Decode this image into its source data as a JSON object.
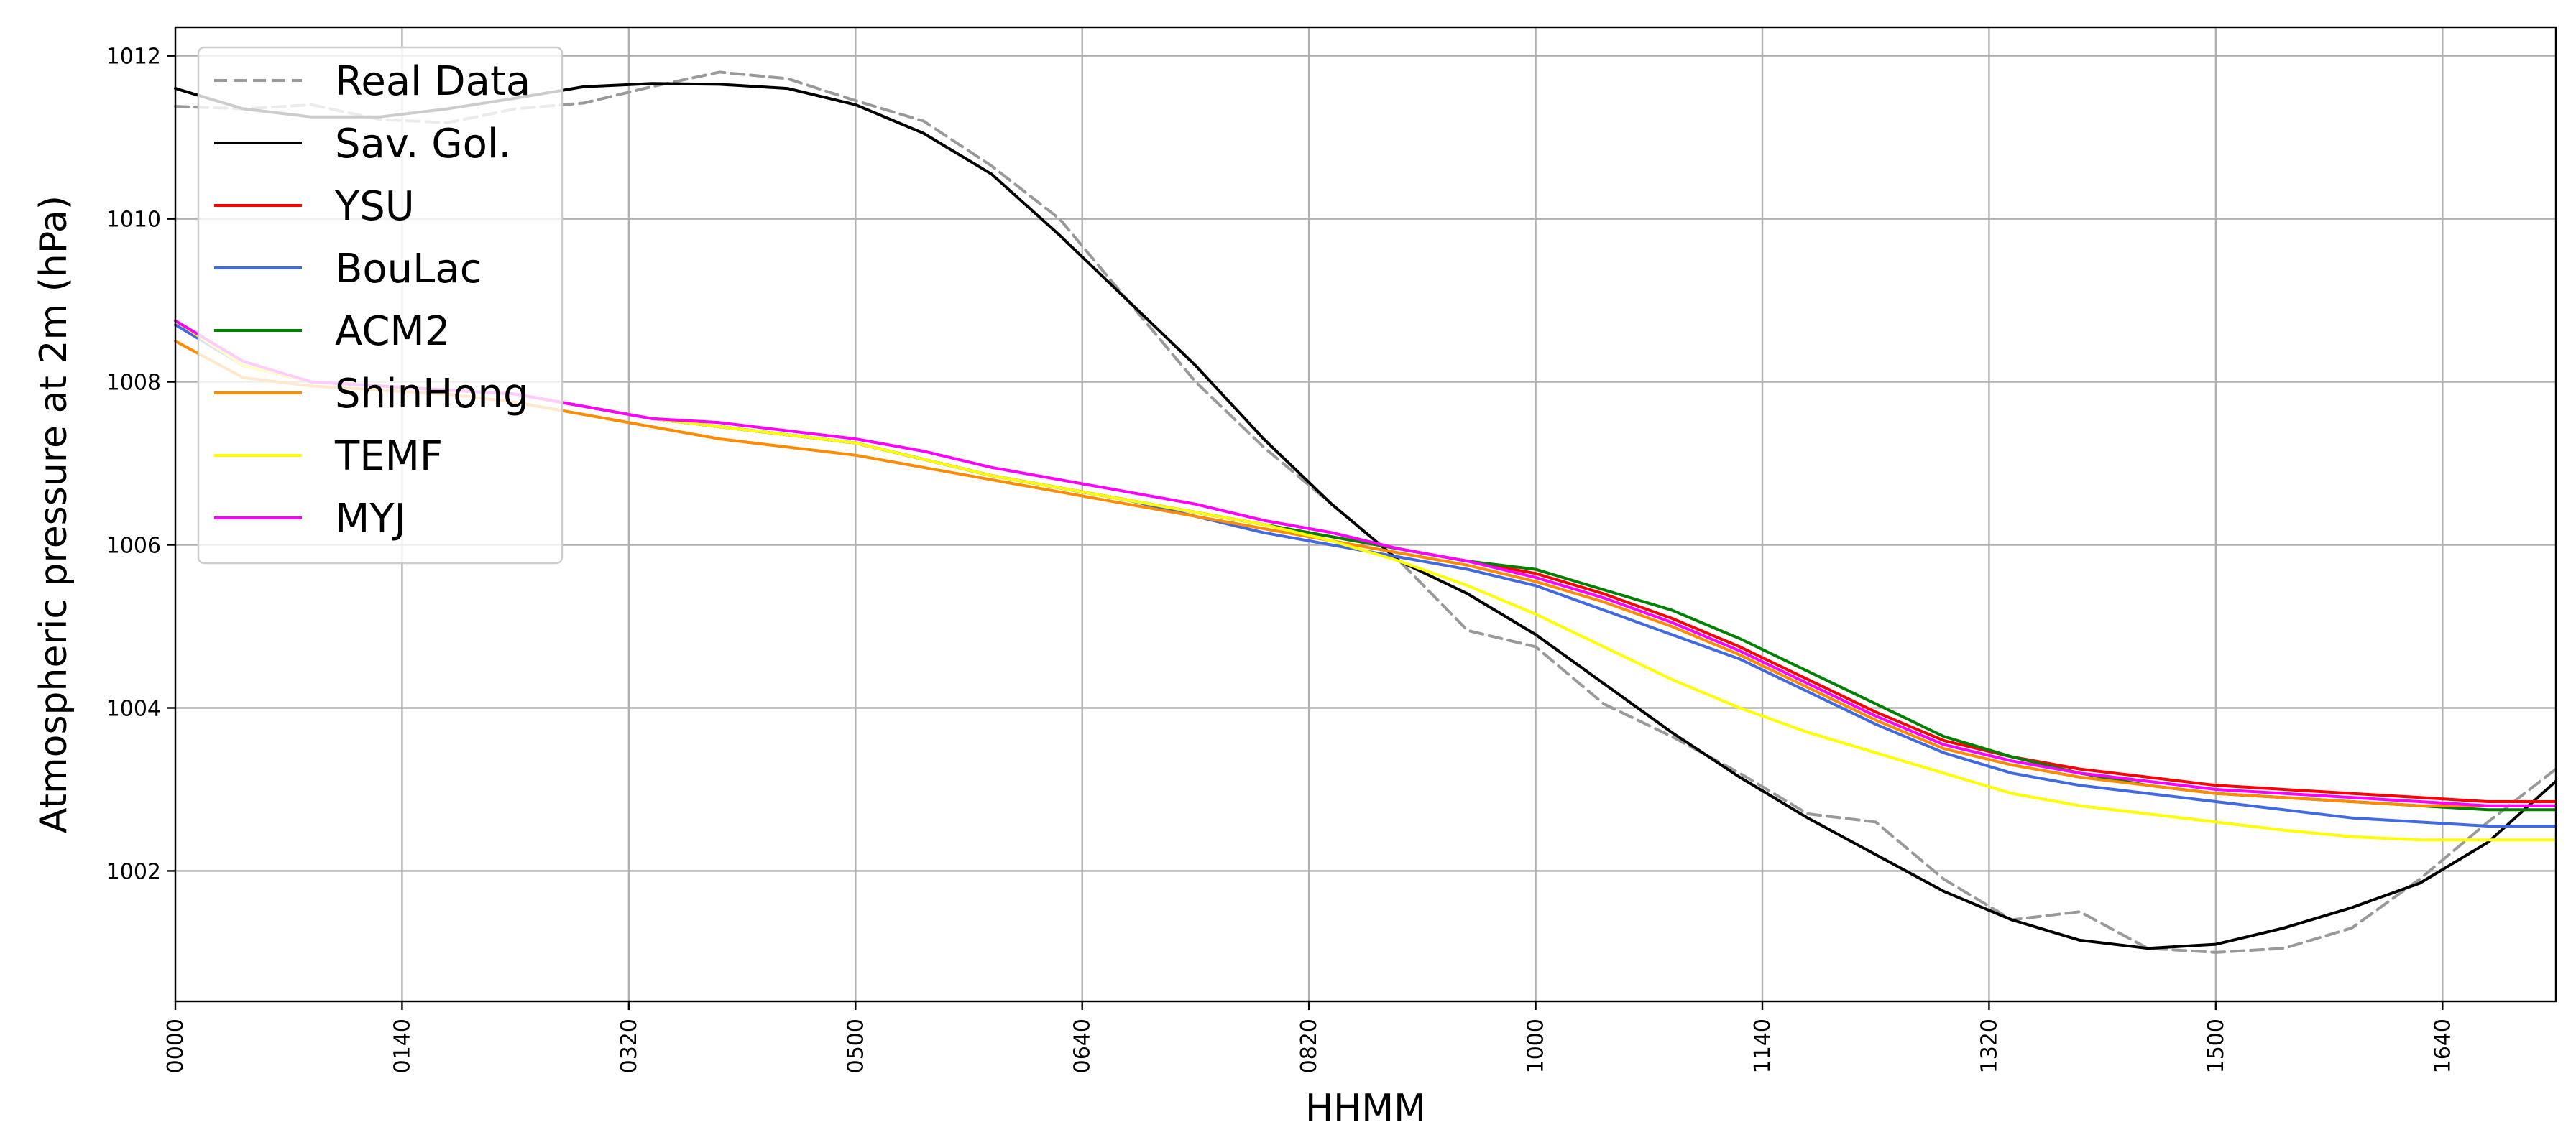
{
  "chart_data": {
    "type": "line",
    "title": "",
    "xlabel": "HHMM",
    "ylabel": "Atmospheric pressure at 2m (hPa)",
    "xlim": [
      "0000",
      "1730"
    ],
    "ylim": [
      1000.4,
      1012.35
    ],
    "grid": true,
    "legend_position": "upper-left",
    "x_ticks": [
      "0000",
      "0140",
      "0320",
      "0500",
      "0640",
      "0820",
      "1000",
      "1140",
      "1320",
      "1500",
      "1640"
    ],
    "y_ticks": [
      1002,
      1004,
      1006,
      1008,
      1010,
      1012
    ],
    "x": [
      "0000",
      "0030",
      "0100",
      "0130",
      "0200",
      "0230",
      "0300",
      "0330",
      "0400",
      "0430",
      "0500",
      "0530",
      "0600",
      "0630",
      "0700",
      "0730",
      "0800",
      "0830",
      "0900",
      "0930",
      "1000",
      "1030",
      "1100",
      "1130",
      "1200",
      "1230",
      "1300",
      "1330",
      "1400",
      "1430",
      "1500",
      "1530",
      "1600",
      "1630",
      "1700",
      "1730"
    ],
    "series": [
      {
        "name": "Real Data",
        "color": "#999999",
        "dash": "dashed",
        "values": [
          1011.38,
          1011.35,
          1011.4,
          1011.22,
          1011.18,
          1011.35,
          1011.42,
          1011.62,
          1011.8,
          1011.72,
          1011.45,
          1011.2,
          1010.65,
          1010.0,
          1009.0,
          1008.0,
          1007.2,
          1006.5,
          1005.8,
          1004.95,
          1004.75,
          1004.05,
          1003.65,
          1003.2,
          1002.7,
          1002.6,
          1001.9,
          1001.4,
          1001.5,
          1001.05,
          1001.0,
          1001.05,
          1001.3,
          1001.9,
          1002.6,
          1003.25
        ]
      },
      {
        "name": "Sav. Gol.",
        "color": "#000000",
        "dash": "solid",
        "values": [
          1011.6,
          1011.35,
          1011.25,
          1011.25,
          1011.35,
          1011.48,
          1011.62,
          1011.66,
          1011.65,
          1011.6,
          1011.4,
          1011.05,
          1010.55,
          1009.8,
          1009.0,
          1008.2,
          1007.3,
          1006.5,
          1005.8,
          1005.4,
          1004.9,
          1004.3,
          1003.7,
          1003.15,
          1002.65,
          1002.2,
          1001.75,
          1001.4,
          1001.15,
          1001.05,
          1001.1,
          1001.3,
          1001.55,
          1001.85,
          1002.35,
          1003.1
        ]
      },
      {
        "name": "YSU",
        "color": "#ff0000",
        "dash": "solid",
        "values": [
          1008.75,
          1008.2,
          1008.0,
          1007.95,
          1007.9,
          1007.85,
          1007.7,
          1007.55,
          1007.45,
          1007.35,
          1007.25,
          1007.05,
          1006.85,
          1006.7,
          1006.55,
          1006.4,
          1006.25,
          1006.1,
          1005.95,
          1005.8,
          1005.65,
          1005.4,
          1005.1,
          1004.75,
          1004.35,
          1003.95,
          1003.6,
          1003.4,
          1003.25,
          1003.15,
          1003.05,
          1003.0,
          1002.95,
          1002.9,
          1002.85,
          1002.85
        ]
      },
      {
        "name": "BouLac",
        "color": "#4169e1",
        "dash": "solid",
        "values": [
          1008.7,
          1008.2,
          1008.0,
          1007.95,
          1007.9,
          1007.85,
          1007.7,
          1007.55,
          1007.45,
          1007.35,
          1007.25,
          1007.05,
          1006.85,
          1006.7,
          1006.55,
          1006.35,
          1006.15,
          1006.0,
          1005.85,
          1005.7,
          1005.5,
          1005.2,
          1004.9,
          1004.6,
          1004.2,
          1003.8,
          1003.45,
          1003.2,
          1003.05,
          1002.95,
          1002.85,
          1002.75,
          1002.65,
          1002.6,
          1002.55,
          1002.55
        ]
      },
      {
        "name": "ACM2",
        "color": "#008000",
        "dash": "solid",
        "values": [
          1008.75,
          1008.2,
          1008.0,
          1007.95,
          1007.9,
          1007.85,
          1007.7,
          1007.55,
          1007.45,
          1007.35,
          1007.25,
          1007.05,
          1006.85,
          1006.7,
          1006.55,
          1006.4,
          1006.25,
          1006.1,
          1005.95,
          1005.8,
          1005.7,
          1005.45,
          1005.2,
          1004.85,
          1004.45,
          1004.05,
          1003.65,
          1003.4,
          1003.2,
          1003.05,
          1002.95,
          1002.9,
          1002.85,
          1002.8,
          1002.75,
          1002.75
        ]
      },
      {
        "name": "ShinHong",
        "color": "#ff8c00",
        "dash": "solid",
        "values": [
          1008.5,
          1008.05,
          1007.95,
          1007.9,
          1007.85,
          1007.75,
          1007.6,
          1007.45,
          1007.3,
          1007.2,
          1007.1,
          1006.95,
          1006.8,
          1006.65,
          1006.5,
          1006.35,
          1006.2,
          1006.05,
          1005.9,
          1005.75,
          1005.55,
          1005.3,
          1005.0,
          1004.65,
          1004.25,
          1003.85,
          1003.5,
          1003.3,
          1003.15,
          1003.05,
          1002.95,
          1002.9,
          1002.85,
          1002.8,
          1002.8,
          1002.8
        ]
      },
      {
        "name": "TEMF",
        "color": "#ffff00",
        "dash": "solid",
        "values": [
          1008.75,
          1008.2,
          1008.0,
          1007.95,
          1007.9,
          1007.85,
          1007.7,
          1007.55,
          1007.45,
          1007.35,
          1007.25,
          1007.05,
          1006.85,
          1006.7,
          1006.55,
          1006.4,
          1006.25,
          1006.05,
          1005.8,
          1005.5,
          1005.15,
          1004.75,
          1004.35,
          1004.0,
          1003.7,
          1003.45,
          1003.2,
          1002.95,
          1002.8,
          1002.7,
          1002.6,
          1002.5,
          1002.42,
          1002.38,
          1002.38,
          1002.38
        ]
      },
      {
        "name": "MYJ",
        "color": "#ff00ff",
        "dash": "solid",
        "values": [
          1008.75,
          1008.25,
          1008.0,
          1007.95,
          1007.9,
          1007.85,
          1007.7,
          1007.55,
          1007.5,
          1007.4,
          1007.3,
          1007.15,
          1006.95,
          1006.8,
          1006.65,
          1006.5,
          1006.3,
          1006.15,
          1005.95,
          1005.8,
          1005.6,
          1005.35,
          1005.05,
          1004.7,
          1004.3,
          1003.9,
          1003.55,
          1003.35,
          1003.2,
          1003.1,
          1003.0,
          1002.95,
          1002.9,
          1002.85,
          1002.8,
          1002.8
        ]
      }
    ]
  }
}
